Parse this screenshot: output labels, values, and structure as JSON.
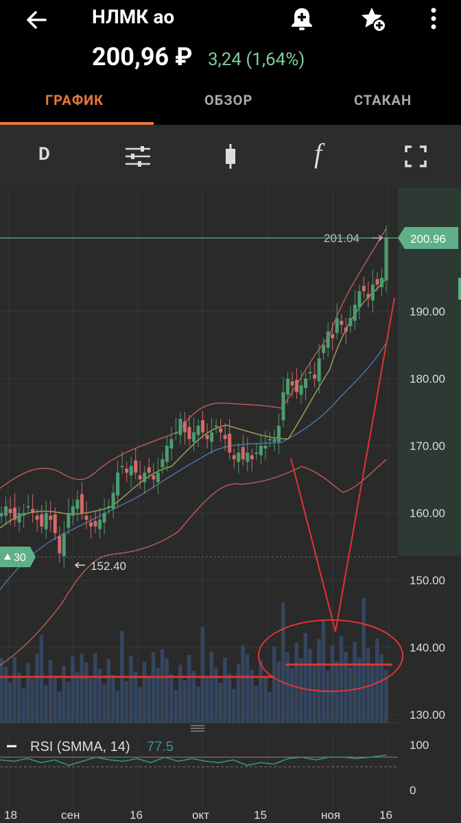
{
  "header": {
    "title": "НЛМК ао",
    "price": "200,96 ₽",
    "change": "3,24 (1,64%)"
  },
  "tabs": [
    {
      "label": "ГРАФИК"
    },
    {
      "label": "ОБЗОР"
    },
    {
      "label": "СТАКАН"
    }
  ],
  "toolbar": {
    "interval_label": "D",
    "italic_f": "f"
  },
  "chart_data": {
    "type": "candlestick",
    "price_axis": [
      "200.96",
      "190.00",
      "180.00",
      "170.00",
      "160.00",
      "150.00",
      "140.00",
      "130.00"
    ],
    "x_axis": [
      "18",
      "сен",
      "16",
      "окт",
      "15",
      "ноя",
      "16"
    ],
    "current_price_label": "200.96",
    "max_marker": "201.04",
    "min_marker": "152.40",
    "volume_badge": "30",
    "indicator": {
      "name": "RSI (SMMA, 14)",
      "value": "77.5",
      "axis": [
        "100",
        "0"
      ]
    }
  },
  "colors": {
    "accent": "#e8793a",
    "up": "#4c9c6f",
    "down": "#d36b6b",
    "bollinger": "#b85a54",
    "ma_fast": "#9ba252",
    "ma_slow": "#4d73a7",
    "rsi": "#2f9a90",
    "annotation": "#e53333"
  }
}
